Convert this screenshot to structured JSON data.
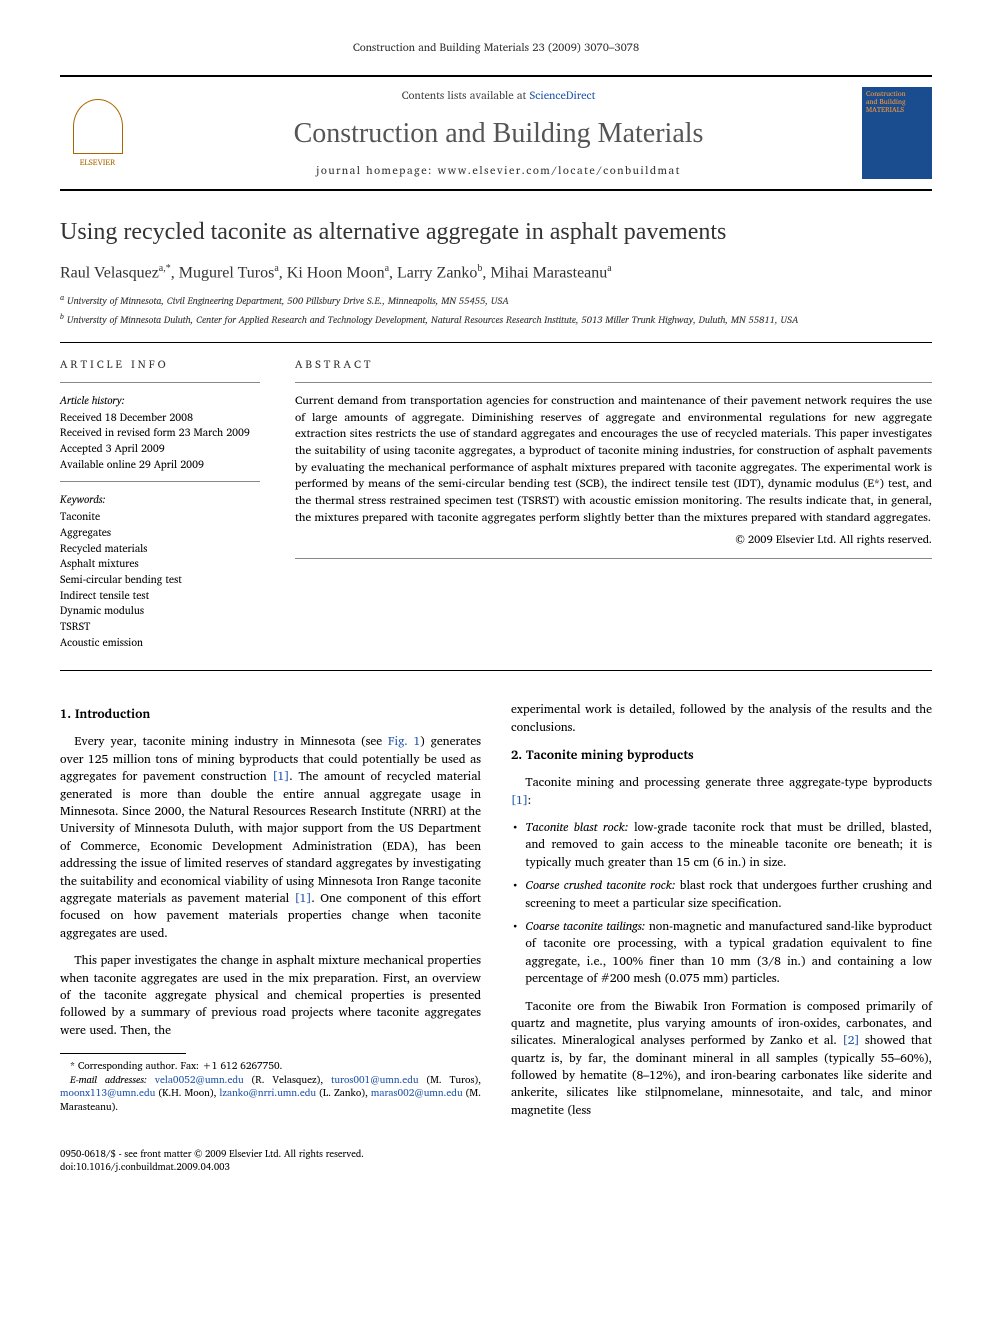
{
  "running_header": "Construction and Building Materials 23 (2009) 3070–3078",
  "header": {
    "publisher_name": "ELSEVIER",
    "contents_prefix": "Contents lists available at ",
    "contents_link": "ScienceDirect",
    "journal_name": "Construction and Building Materials",
    "homepage_label": "journal homepage: www.elsevier.com/locate/conbuildmat",
    "cover_line1": "Construction",
    "cover_line2": "and Building",
    "cover_line3": "MATERIALS"
  },
  "title": "Using recycled taconite as alternative aggregate in asphalt pavements",
  "authors_raw": "Raul Velasquez",
  "authors": [
    {
      "name": "Raul Velasquez",
      "marks": "a,*"
    },
    {
      "name": "Mugurel Turos",
      "marks": "a"
    },
    {
      "name": "Ki Hoon Moon",
      "marks": "a"
    },
    {
      "name": "Larry Zanko",
      "marks": "b"
    },
    {
      "name": "Mihai Marasteanu",
      "marks": "a"
    }
  ],
  "affiliations": [
    "University of Minnesota, Civil Engineering Department, 500 Pillsbury Drive S.E., Minneapolis, MN 55455, USA",
    "University of Minnesota Duluth, Center for Applied Research and Technology Development, Natural Resources Research Institute, 5013 Miller Trunk Highway, Duluth, MN 55811, USA"
  ],
  "info": {
    "head": "ARTICLE INFO",
    "history_label": "Article history:",
    "history": [
      "Received 18 December 2008",
      "Received in revised form 23 March 2009",
      "Accepted 3 April 2009",
      "Available online 29 April 2009"
    ],
    "keywords_label": "Keywords:",
    "keywords": [
      "Taconite",
      "Aggregates",
      "Recycled materials",
      "Asphalt mixtures",
      "Semi-circular bending test",
      "Indirect tensile test",
      "Dynamic modulus",
      "TSRST",
      "Acoustic emission"
    ]
  },
  "abstract": {
    "head": "ABSTRACT",
    "text": "Current demand from transportation agencies for construction and maintenance of their pavement network requires the use of large amounts of aggregate. Diminishing reserves of aggregate and environmental regulations for new aggregate extraction sites restricts the use of standard aggregates and encourages the use of recycled materials. This paper investigates the suitability of using taconite aggregates, a byproduct of taconite mining industries, for construction of asphalt pavements by evaluating the mechanical performance of asphalt mixtures prepared with taconite aggregates. The experimental work is performed by means of the semi-circular bending test (SCB), the indirect tensile test (IDT), dynamic modulus (E*) test, and the thermal stress restrained specimen test (TSRST) with acoustic emission monitoring. The results indicate that, in general, the mixtures prepared with taconite aggregates perform slightly better than the mixtures prepared with standard aggregates.",
    "copyright": "© 2009 Elsevier Ltd. All rights reserved."
  },
  "sections": {
    "intro_head": "1. Introduction",
    "intro_p1a": "Every year, taconite mining industry in Minnesota (see ",
    "intro_p1_fig": "Fig. 1",
    "intro_p1b": ") generates over 125 million tons of mining byproducts that could potentially be used as aggregates for pavement construction ",
    "intro_p1_ref": "[1]",
    "intro_p1c": ". The amount of recycled material generated is more than double the entire annual aggregate usage in Minnesota. Since 2000, the Natural Resources Research Institute (NRRI) at the University of Minnesota Duluth, with major support from the US Department of Commerce, Economic Development Administration (EDA), has been addressing the issue of limited reserves of standard aggregates by investigating the suitability and economical viability of using Minnesota Iron Range taconite aggregate materials as pavement material ",
    "intro_p1_ref2": "[1]",
    "intro_p1d": ". One component of this effort focused on how pavement materials properties change when taconite aggregates are used.",
    "intro_p2": "This paper investigates the change in asphalt mixture mechanical properties when taconite aggregates are used in the mix preparation. First, an overview of the taconite aggregate physical and chemical properties is presented followed by a summary of previous road projects where taconite aggregates were used. Then, the",
    "intro_p2_cont": "experimental work is detailed, followed by the analysis of the results and the conclusions.",
    "byproducts_head": "2. Taconite mining byproducts",
    "byproducts_p1a": "Taconite mining and processing generate three aggregate-type byproducts ",
    "byproducts_p1_ref": "[1]",
    "byproducts_p1b": ":",
    "bullets": [
      {
        "term": "Taconite blast rock:",
        "text": " low-grade taconite rock that must be drilled, blasted, and removed to gain access to the mineable taconite ore beneath; it is typically much greater than 15 cm (6 in.) in size."
      },
      {
        "term": "Coarse crushed taconite rock:",
        "text": " blast rock that undergoes further crushing and screening to meet a particular size specification."
      },
      {
        "term": "Coarse taconite tailings:",
        "text": " non-magnetic and manufactured sand-like byproduct of taconite ore processing, with a typical gradation equivalent to fine aggregate, i.e., 100% finer than 10 mm (3/8 in.) and containing a low percentage of #200 mesh (0.075 mm) particles."
      }
    ],
    "byproducts_p2a": "Taconite ore from the Biwabik Iron Formation is composed primarily of quartz and magnetite, plus varying amounts of iron-oxides, carbonates, and silicates. Mineralogical analyses performed by Zanko et al. ",
    "byproducts_p2_ref": "[2]",
    "byproducts_p2b": " showed that quartz is, by far, the dominant mineral in all samples (typically 55–60%), followed by hematite (8–12%), and iron-bearing carbonates like siderite and ankerite, silicates like stilpnomelane, minnesotaite, and talc, and minor magnetite (less"
  },
  "footnote": {
    "corr": "* Corresponding author. Fax: +1 612 6267750.",
    "email_label": "E-mail addresses:",
    "emails": [
      {
        "addr": "vela0052@umn.edu",
        "who": "(R. Velasquez),"
      },
      {
        "addr": "turos001@umn.edu",
        "who": "(M. Turos),"
      },
      {
        "addr": "moonx113@umn.edu",
        "who": "(K.H. Moon),"
      },
      {
        "addr": "lzanko@nrri.umn.edu",
        "who": "(L. Zanko),"
      },
      {
        "addr": "maras002@umn.edu",
        "who": "(M. Marasteanu)."
      }
    ]
  },
  "bottom": {
    "line1": "0950-0618/$ - see front matter © 2009 Elsevier Ltd. All rights reserved.",
    "line2": "doi:10.1016/j.conbuildmat.2009.04.003"
  },
  "colors": {
    "link": "#2255aa",
    "text": "#000000",
    "journal_gray": "#555555",
    "elsevier_orange": "#aa6600",
    "cover_blue": "#1a4d8f",
    "cover_orange": "#ff9933"
  }
}
